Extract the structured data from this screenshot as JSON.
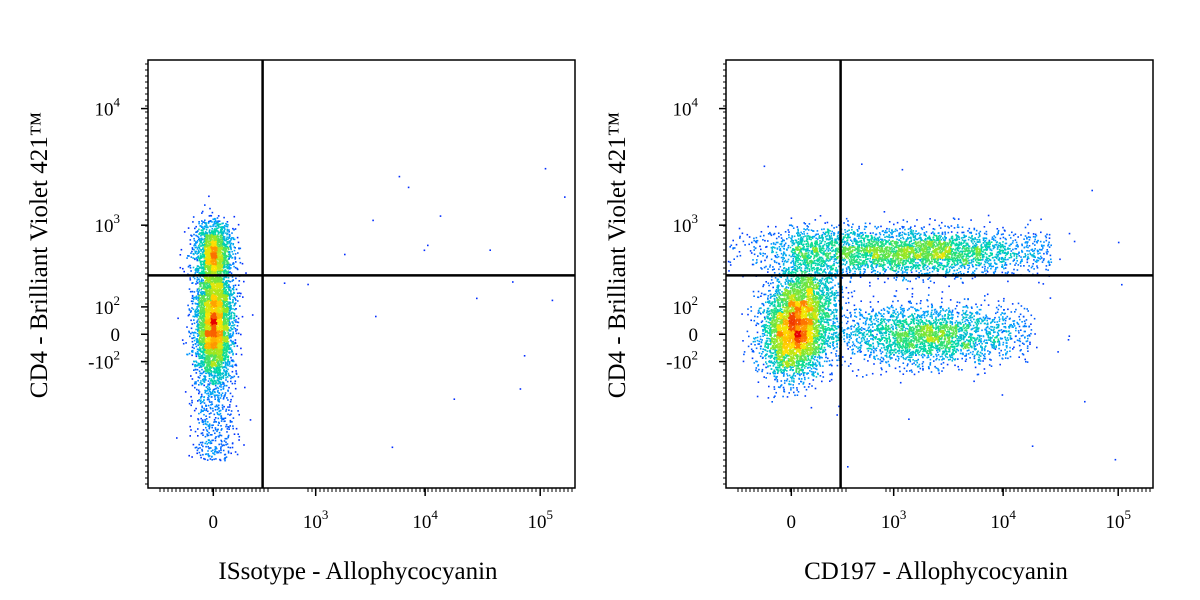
{
  "chart_data": [
    {
      "type": "scatter",
      "subtype": "flow-cytometry-density",
      "xlabel": "ISsotype - Allophycocyanin",
      "ylabel": "CD4 - Brilliant Violet 421™",
      "x_scale": "biexponential",
      "y_scale": "biexponential",
      "x_tick_labels": [
        "0",
        "10^3",
        "10^4",
        "10^5"
      ],
      "y_tick_labels": [
        "-10^2",
        "0",
        "10^2",
        "10^3",
        "10^4"
      ],
      "x_gate": 250,
      "y_gate": 300,
      "populations": [
        {
          "x_center": 0,
          "y_center": 550,
          "density": "high"
        },
        {
          "x_center": 0,
          "y_center": 130,
          "density": "medium"
        },
        {
          "x_center": 0,
          "y_center": 0,
          "density": "highest"
        }
      ]
    },
    {
      "type": "scatter",
      "subtype": "flow-cytometry-density",
      "xlabel": "CD197 - Allophycocyanin",
      "ylabel": "CD4 - Brilliant Violet 421™",
      "x_scale": "biexponential",
      "y_scale": "biexponential",
      "x_tick_labels": [
        "0",
        "10^3",
        "10^4",
        "10^5"
      ],
      "y_tick_labels": [
        "-10^2",
        "0",
        "10^2",
        "10^3",
        "10^4"
      ],
      "x_gate": 250,
      "y_gate": 300,
      "populations": [
        {
          "x_center": 0,
          "y_center": 0,
          "density": "highest"
        },
        {
          "x_center": 50,
          "y_center": 120,
          "density": "high"
        },
        {
          "x_center": 2000,
          "y_center": 550,
          "density": "high"
        },
        {
          "x_center": 2000,
          "y_center": 0,
          "density": "high"
        },
        {
          "x_center": 150,
          "y_center": 600,
          "density": "low"
        }
      ]
    }
  ]
}
